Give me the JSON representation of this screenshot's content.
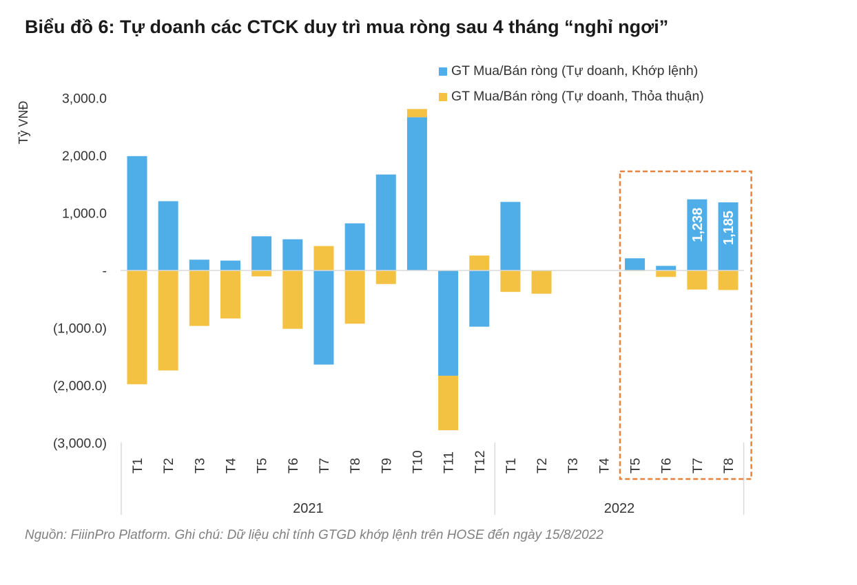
{
  "title": "Biểu đồ 6: Tự doanh các CTCK duy trì mua ròng sau 4 tháng “nghỉ ngơi”",
  "source": "Nguồn: FiiinPro Platform. Ghi chú: Dữ liệu chỉ tính GTGD khớp lệnh trên HOSE đến ngày 15/8/2022",
  "chart_data": {
    "type": "bar",
    "stacked": true,
    "title": "Biểu đồ 6: Tự doanh các CTCK duy trì mua ròng sau 4 tháng “nghỉ ngơi”",
    "ylabel": "Tỷ VNĐ",
    "ylim": [
      -3000,
      3000
    ],
    "yticks": [
      3000,
      2000,
      1000,
      0,
      -1000,
      -2000,
      -3000
    ],
    "ytick_labels": [
      "3,000.0",
      "2,000.0",
      "1,000.0",
      "-",
      "(1,000.0)",
      "(2,000.0)",
      "(3,000.0)"
    ],
    "grid": false,
    "legend_position": "top-right",
    "groups": [
      {
        "label": "2021",
        "categories": [
          "T1",
          "T2",
          "T3",
          "T4",
          "T5",
          "T6",
          "T7",
          "T8",
          "T9",
          "T10",
          "T11",
          "T12"
        ]
      },
      {
        "label": "2022",
        "categories": [
          "T1",
          "T2",
          "T3",
          "T4",
          "T5",
          "T6",
          "T7",
          "T8"
        ]
      }
    ],
    "series": [
      {
        "name": "GT Mua/Bán ròng (Tự doanh, Khớp lệnh)",
        "color": "#4FADE8",
        "values": [
          1990,
          1205,
          188,
          172,
          595,
          543,
          -1637,
          820,
          1670,
          2667,
          -1832,
          -978,
          1193,
          0,
          0,
          0,
          212,
          80,
          1238,
          1185
        ]
      },
      {
        "name": "GT Mua/Bán ròng (Tự doanh, Thỏa thuận)",
        "color": "#F4C242",
        "values": [
          -1980,
          -1740,
          -965,
          -835,
          -103,
          -1015,
          425,
          -926,
          -236,
          143,
          -948,
          260,
          -373,
          -404,
          0,
          0,
          -10,
          -112,
          -332,
          -340
        ]
      }
    ],
    "data_labels": [
      {
        "series": 0,
        "index": 18,
        "text": "1,238"
      },
      {
        "series": 0,
        "index": 19,
        "text": "1,185"
      }
    ],
    "highlight_box": {
      "from_index": 16,
      "to_index": 19,
      "color": "#E8823A",
      "style": "dashed"
    }
  }
}
